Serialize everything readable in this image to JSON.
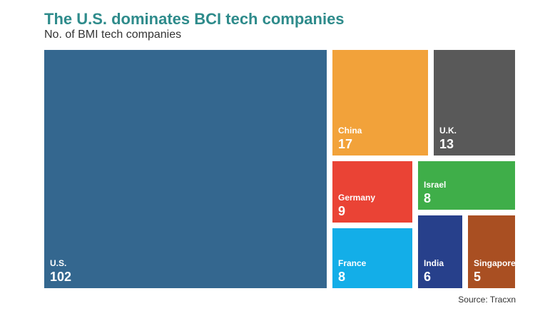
{
  "title": "The U.S. dominates BCI tech companies",
  "subtitle": "No. of BMI tech companies",
  "source": "Source: Tracxn",
  "chart_data": {
    "type": "treemap",
    "title": "The U.S. dominates BCI tech companies",
    "subtitle": "No. of BMI tech companies",
    "categories": [
      "U.S.",
      "China",
      "U.K.",
      "Germany",
      "Israel",
      "France",
      "India",
      "Singapore"
    ],
    "values": [
      102,
      17,
      13,
      9,
      8,
      8,
      6,
      5
    ],
    "colors": {
      "U.S.": "#34678f",
      "China": "#f2a23a",
      "U.K.": "#595959",
      "Germany": "#ea4335",
      "Israel": "#3fae49",
      "France": "#13aee8",
      "India": "#27408b",
      "Singapore": "#a94f22"
    },
    "source": "Source: Tracxn"
  }
}
